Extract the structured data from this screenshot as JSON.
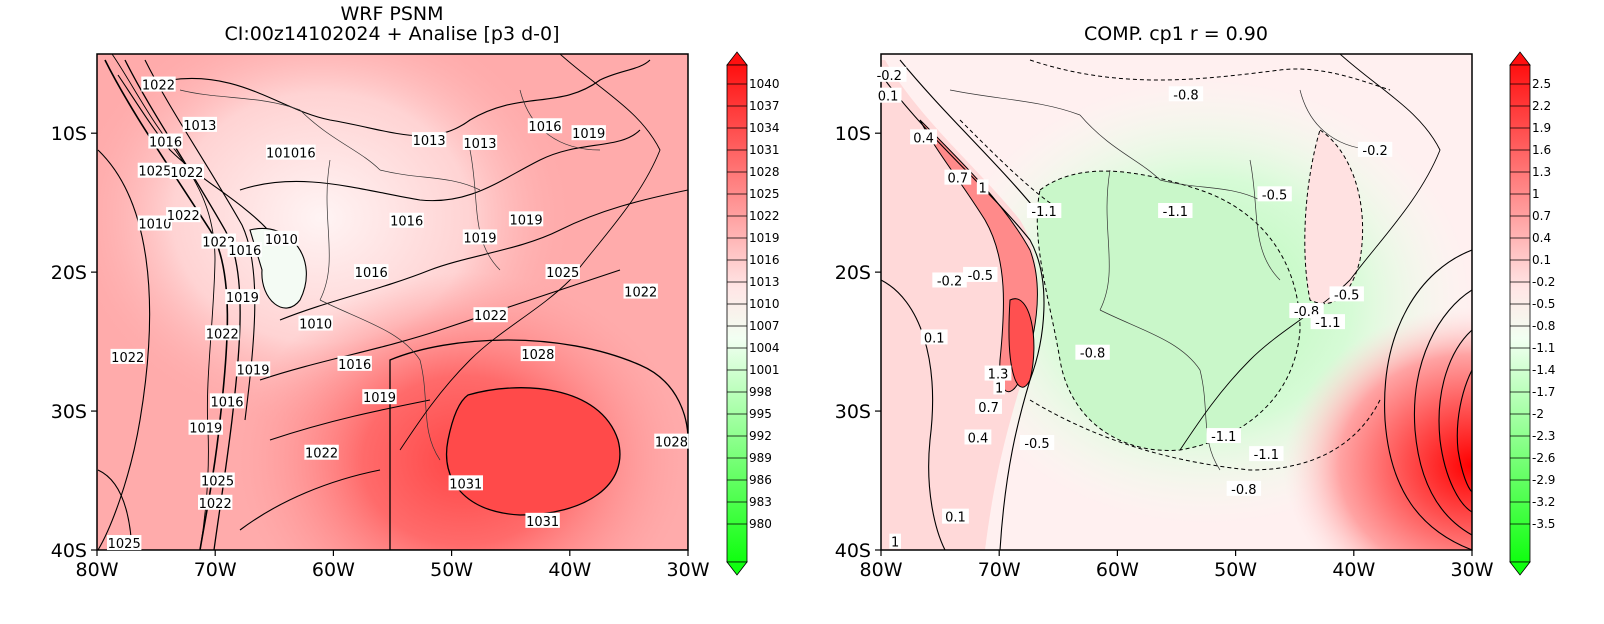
{
  "left": {
    "title_line1": "WRF PSNM",
    "title_line2": "CI:00z14102024 + Analise  [p3 d-0]",
    "colorbar_values": [
      "1040",
      "1037",
      "1034",
      "1031",
      "1028",
      "1025",
      "1022",
      "1019",
      "1016",
      "1013",
      "1010",
      "1007",
      "1004",
      "1001",
      "998",
      "995",
      "992",
      "989",
      "986",
      "983",
      "980"
    ],
    "contour_labels": [
      {
        "text": "1022",
        "lon": -74.8,
        "lat": -6.5
      },
      {
        "text": "1013",
        "lon": -71.3,
        "lat": -9.4
      },
      {
        "text": "1016",
        "lon": -74.2,
        "lat": -10.6
      },
      {
        "text": "1025",
        "lon": -75.1,
        "lat": -12.7
      },
      {
        "text": "1022",
        "lon": -72.4,
        "lat": -12.8
      },
      {
        "text": "101016",
        "lon": -63.6,
        "lat": -11.4
      },
      {
        "text": "1013",
        "lon": -51.9,
        "lat": -10.5
      },
      {
        "text": "1013",
        "lon": -47.6,
        "lat": -10.7
      },
      {
        "text": "1016",
        "lon": -42.1,
        "lat": -9.5
      },
      {
        "text": "1019",
        "lon": -38.4,
        "lat": -10.0
      },
      {
        "text": "1010",
        "lon": -75.1,
        "lat": -16.5
      },
      {
        "text": "1022",
        "lon": -72.7,
        "lat": -15.9
      },
      {
        "text": "1022",
        "lon": -69.7,
        "lat": -17.8
      },
      {
        "text": "1016",
        "lon": -67.5,
        "lat": -18.4
      },
      {
        "text": "1010",
        "lon": -64.4,
        "lat": -17.6
      },
      {
        "text": "1016",
        "lon": -53.8,
        "lat": -16.3
      },
      {
        "text": "1019",
        "lon": -43.7,
        "lat": -16.2
      },
      {
        "text": "1019",
        "lon": -47.6,
        "lat": -17.5
      },
      {
        "text": "1016",
        "lon": -56.8,
        "lat": -20.0
      },
      {
        "text": "1025",
        "lon": -40.6,
        "lat": -20.0
      },
      {
        "text": "1022",
        "lon": -34.0,
        "lat": -21.4
      },
      {
        "text": "1019",
        "lon": -67.7,
        "lat": -21.8
      },
      {
        "text": "1010",
        "lon": -61.5,
        "lat": -23.7
      },
      {
        "text": "1022",
        "lon": -69.4,
        "lat": -24.4
      },
      {
        "text": "1022",
        "lon": -46.7,
        "lat": -23.1
      },
      {
        "text": "1022",
        "lon": -77.4,
        "lat": -26.1
      },
      {
        "text": "1019",
        "lon": -66.8,
        "lat": -27.0
      },
      {
        "text": "1016",
        "lon": -58.2,
        "lat": -26.6
      },
      {
        "text": "1028",
        "lon": -42.7,
        "lat": -25.9
      },
      {
        "text": "1016",
        "lon": -69.0,
        "lat": -29.3
      },
      {
        "text": "1019",
        "lon": -56.1,
        "lat": -29.0
      },
      {
        "text": "1019",
        "lon": -70.8,
        "lat": -31.2
      },
      {
        "text": "1028",
        "lon": -31.4,
        "lat": -32.2
      },
      {
        "text": "1022",
        "lon": -61.0,
        "lat": -33.0
      },
      {
        "text": "1025",
        "lon": -69.8,
        "lat": -35.0
      },
      {
        "text": "1022",
        "lon": -70.0,
        "lat": -36.6
      },
      {
        "text": "1031",
        "lon": -48.8,
        "lat": -35.2
      },
      {
        "text": "1031",
        "lon": -42.3,
        "lat": -37.9
      },
      {
        "text": "1025",
        "lon": -77.7,
        "lat": -39.5
      }
    ]
  },
  "right": {
    "title": "COMP. cp1  r =  0.90",
    "colorbar_values": [
      "2.5",
      "2.2",
      "1.9",
      "1.6",
      "1.3",
      "1",
      "0.7",
      "0.4",
      "0.1",
      "-0.2",
      "-0.5",
      "-0.8",
      "-1.1",
      "-1.4",
      "-1.7",
      "-2",
      "-2.3",
      "-2.6",
      "-2.9",
      "-3.2",
      "-3.5"
    ],
    "contour_labels": [
      {
        "text": "-0.2",
        "lon": -79.3,
        "lat": -5.8
      },
      {
        "text": "0.1",
        "lon": -79.4,
        "lat": -7.3
      },
      {
        "text": "0.4",
        "lon": -76.4,
        "lat": -10.3
      },
      {
        "text": "0.7",
        "lon": -73.5,
        "lat": -13.2
      },
      {
        "text": "1",
        "lon": -71.4,
        "lat": -13.9
      },
      {
        "text": "-0.8",
        "lon": -54.2,
        "lat": -7.2
      },
      {
        "text": "-0.2",
        "lon": -38.2,
        "lat": -11.2
      },
      {
        "text": "-0.5",
        "lon": -46.7,
        "lat": -14.4
      },
      {
        "text": "-1.1",
        "lon": -66.2,
        "lat": -15.6
      },
      {
        "text": "-1.1",
        "lon": -55.1,
        "lat": -15.6
      },
      {
        "text": "-0.2",
        "lon": -74.2,
        "lat": -20.6
      },
      {
        "text": "-0.5",
        "lon": -71.6,
        "lat": -20.2
      },
      {
        "text": "-0.8",
        "lon": -44.0,
        "lat": -22.8
      },
      {
        "text": "-0.5",
        "lon": -40.6,
        "lat": -21.6
      },
      {
        "text": "-1.1",
        "lon": -42.2,
        "lat": -23.6
      },
      {
        "text": "0.1",
        "lon": -75.5,
        "lat": -24.7
      },
      {
        "text": "-0.8",
        "lon": -62.1,
        "lat": -25.8
      },
      {
        "text": "1.3",
        "lon": -70.1,
        "lat": -27.3
      },
      {
        "text": "1",
        "lon": -70.0,
        "lat": -28.3
      },
      {
        "text": "0.7",
        "lon": -70.9,
        "lat": -29.7
      },
      {
        "text": "0.4",
        "lon": -71.8,
        "lat": -31.9
      },
      {
        "text": "-0.5",
        "lon": -66.8,
        "lat": -32.3
      },
      {
        "text": "-1.1",
        "lon": -51.0,
        "lat": -31.8
      },
      {
        "text": "-1.1",
        "lon": -47.4,
        "lat": -33.1
      },
      {
        "text": "-0.8",
        "lon": -49.3,
        "lat": -35.6
      },
      {
        "text": "0.1",
        "lon": -73.7,
        "lat": -37.6
      },
      {
        "text": "1",
        "lon": -78.8,
        "lat": -39.4
      }
    ]
  },
  "axes": {
    "xticks": [
      "80W",
      "70W",
      "60W",
      "50W",
      "40W",
      "30W"
    ],
    "yticks": [
      "10S",
      "20S",
      "30S",
      "40S"
    ]
  },
  "colors": {
    "land_border": "#000000",
    "high": "#ff2a2a",
    "low": "#22ff22"
  }
}
